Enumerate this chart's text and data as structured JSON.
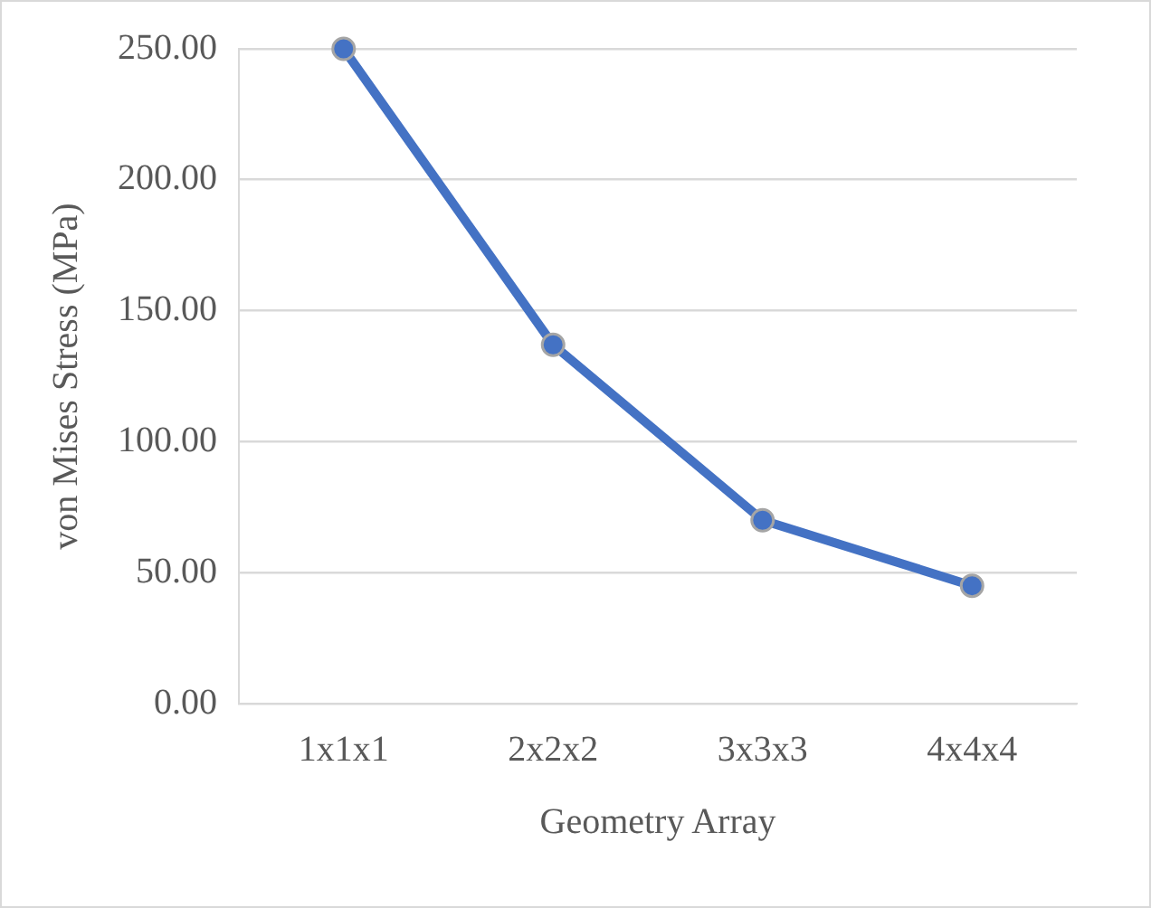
{
  "chart_data": {
    "type": "line",
    "xlabel": "Geometry Array",
    "ylabel": "von Mises Stress (MPa)",
    "categories": [
      "1x1x1",
      "2x2x2",
      "3x3x3",
      "4x4x4"
    ],
    "series": [
      {
        "color": "#4472c4",
        "values": [
          250,
          137,
          70,
          45
        ]
      }
    ],
    "ylim": [
      0,
      250
    ],
    "yticks": [
      {
        "value": 0,
        "label": "0.00"
      },
      {
        "value": 50,
        "label": "50.00"
      },
      {
        "value": 100,
        "label": "100.00"
      },
      {
        "value": 150,
        "label": "150.00"
      },
      {
        "value": 200,
        "label": "200.00"
      },
      {
        "value": 250,
        "label": "250.00"
      }
    ],
    "grid": "y",
    "legend": false,
    "marker": "circle",
    "line_style": "solid"
  }
}
